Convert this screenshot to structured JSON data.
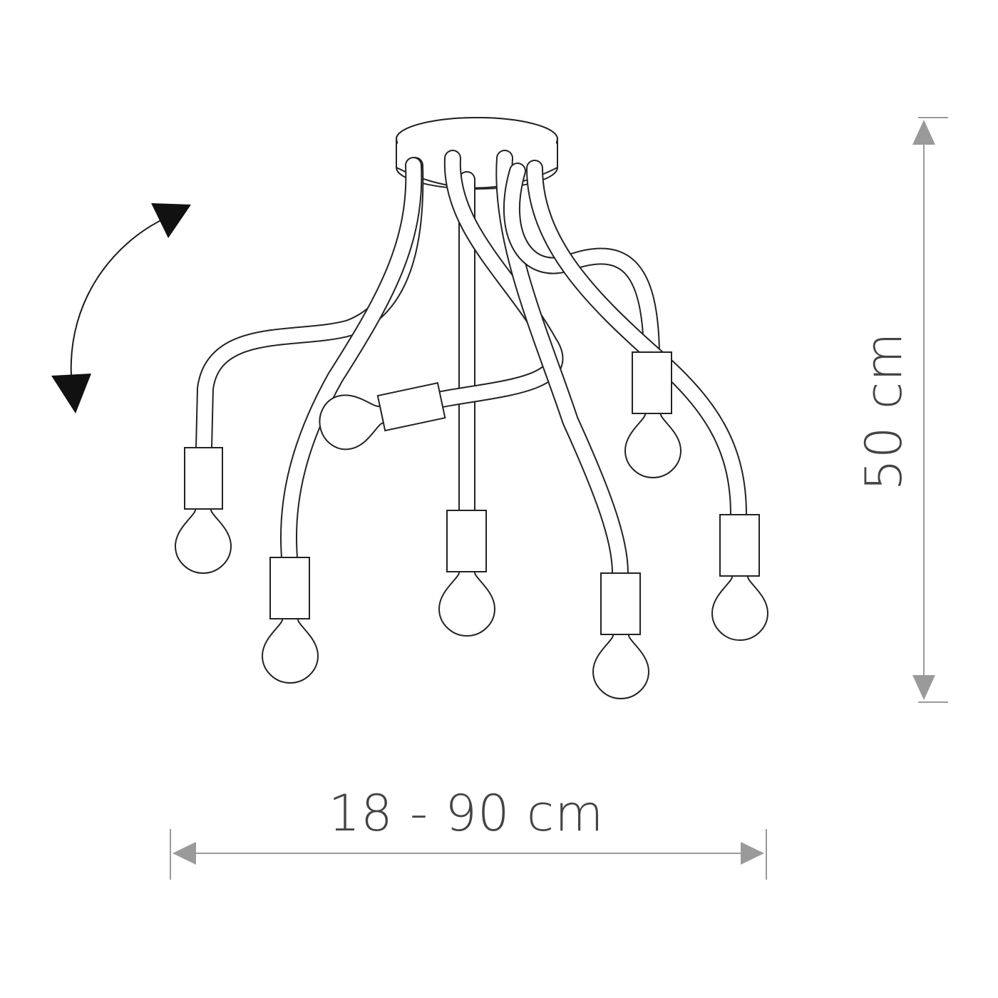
{
  "dimensions": {
    "width_label": "18 - 90 cm",
    "height_label": "50 cm"
  },
  "product": {
    "type": "flexible-arm ceiling lamp",
    "arm_count": 7,
    "bulb_count": 7
  },
  "icons": {
    "rotation": "adjust-arrows-icon",
    "dimension_arrow": "dimension-arrow-icon"
  },
  "colors": {
    "line": "#222222",
    "dimension": "#9a9a9a",
    "label": "#444444",
    "background": "#ffffff"
  }
}
